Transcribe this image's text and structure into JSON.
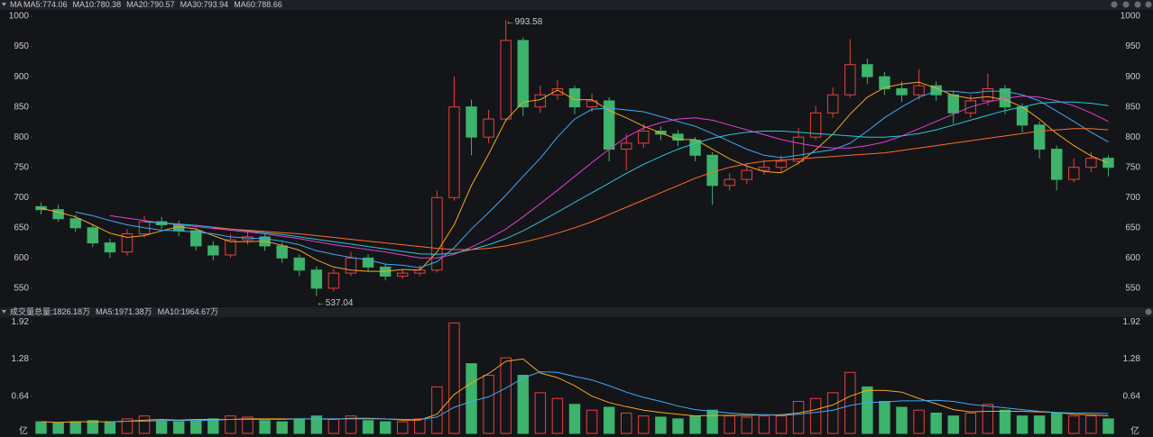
{
  "chart_data": [
    {
      "type": "candlestick",
      "indicator": "MA",
      "up_color": "#e8413c",
      "down_color": "#3db36b",
      "open": [
        685,
        680,
        665,
        650,
        625,
        610,
        640,
        660,
        655,
        645,
        620,
        605,
        630,
        635,
        620,
        600,
        580,
        550,
        575,
        600,
        585,
        570,
        575,
        580,
        700,
        850,
        800,
        830,
        960,
        850,
        870,
        880,
        850,
        860,
        780,
        790,
        810,
        805,
        795,
        770,
        720,
        730,
        745,
        750,
        760,
        800,
        840,
        870,
        920,
        900,
        880,
        870,
        885,
        870,
        840,
        860,
        880,
        850,
        820,
        780,
        730,
        750,
        765
      ],
      "high": [
        692,
        688,
        672,
        656,
        632,
        648,
        670,
        668,
        662,
        650,
        628,
        640,
        645,
        640,
        626,
        606,
        586,
        582,
        610,
        606,
        590,
        580,
        588,
        712,
        900,
        862,
        845,
        993.58,
        965,
        885,
        895,
        885,
        872,
        866,
        805,
        822,
        818,
        812,
        800,
        775,
        740,
        755,
        762,
        770,
        815,
        852,
        882,
        962,
        930,
        908,
        892,
        912,
        892,
        876,
        870,
        905,
        886,
        856,
        826,
        786,
        765,
        775,
        770
      ],
      "low": [
        672,
        660,
        643,
        618,
        600,
        604,
        634,
        648,
        636,
        612,
        596,
        600,
        622,
        612,
        592,
        570,
        537.04,
        545,
        570,
        578,
        563,
        565,
        570,
        576,
        695,
        770,
        790,
        825,
        835,
        840,
        862,
        838,
        842,
        760,
        745,
        782,
        795,
        785,
        760,
        688,
        712,
        722,
        738,
        742,
        755,
        795,
        832,
        865,
        888,
        870,
        858,
        862,
        860,
        822,
        832,
        852,
        838,
        808,
        765,
        712,
        725,
        742,
        735
      ],
      "close": [
        680,
        665,
        650,
        625,
        610,
        640,
        660,
        655,
        645,
        620,
        605,
        630,
        635,
        620,
        600,
        580,
        550,
        575,
        600,
        585,
        570,
        575,
        580,
        700,
        850,
        800,
        830,
        960,
        850,
        870,
        880,
        850,
        860,
        780,
        790,
        810,
        805,
        795,
        770,
        720,
        730,
        745,
        750,
        760,
        800,
        840,
        870,
        920,
        900,
        880,
        870,
        885,
        870,
        840,
        860,
        880,
        850,
        820,
        780,
        730,
        750,
        765,
        750
      ],
      "series": [
        {
          "name": "MA5:774.06",
          "color": "#f5a623",
          "values": [
            682,
            676,
            668,
            655,
            641,
            634,
            637,
            645,
            652,
            648,
            637,
            627,
            627,
            628,
            621,
            613,
            597,
            585,
            580,
            578,
            578,
            581,
            580,
            610,
            655,
            720,
            772,
            828,
            858,
            862,
            878,
            862,
            862,
            844,
            832,
            818,
            807,
            796,
            796,
            780,
            764,
            752,
            743,
            741,
            757,
            779,
            805,
            838,
            866,
            882,
            888,
            891,
            881,
            869,
            864,
            867,
            862,
            850,
            830,
            806,
            786,
            769,
            757
          ]
        },
        {
          "name": "MA10:780.38",
          "color": "#3fa9f5",
          "values": [
            null,
            null,
            676,
            670,
            662,
            655,
            650,
            646,
            645,
            643,
            640,
            635,
            633,
            632,
            628,
            622,
            612,
            606,
            601,
            597,
            590,
            588,
            584,
            594,
            617,
            648,
            675,
            704,
            735,
            765,
            800,
            830,
            846,
            848,
            845,
            842,
            834,
            826,
            818,
            806,
            793,
            780,
            770,
            766,
            770,
            775,
            779,
            790,
            810,
            832,
            850,
            866,
            876,
            876,
            873,
            876,
            876,
            870,
            860,
            843,
            826,
            808,
            792
          ]
        },
        {
          "name": "MA20:790.57",
          "color": "#e040d0",
          "values": [
            null,
            null,
            null,
            null,
            670,
            666,
            662,
            658,
            655,
            652,
            649,
            646,
            643,
            640,
            636,
            632,
            627,
            622,
            618,
            614,
            610,
            605,
            600,
            600,
            606,
            618,
            632,
            648,
            668,
            690,
            712,
            735,
            758,
            780,
            800,
            815,
            824,
            830,
            832,
            828,
            820,
            812,
            804,
            796,
            790,
            785,
            782,
            782,
            786,
            792,
            802,
            814,
            826,
            838,
            850,
            858,
            864,
            868,
            866,
            860,
            852,
            840,
            826
          ]
        },
        {
          "name": "MA30:793.94",
          "color": "#2ec4d6",
          "values": [
            null,
            null,
            null,
            null,
            null,
            null,
            660,
            658,
            656,
            654,
            651,
            648,
            645,
            642,
            639,
            635,
            631,
            627,
            623,
            619,
            615,
            611,
            607,
            606,
            608,
            614,
            622,
            632,
            645,
            660,
            676,
            692,
            708,
            724,
            740,
            755,
            768,
            780,
            790,
            798,
            804,
            808,
            810,
            810,
            808,
            806,
            804,
            802,
            800,
            800,
            802,
            806,
            812,
            820,
            828,
            836,
            844,
            850,
            856,
            858,
            858,
            856,
            852
          ]
        },
        {
          "name": "MA60:788.66",
          "color": "#ff6b2b",
          "values": [
            null,
            null,
            null,
            null,
            null,
            null,
            null,
            null,
            null,
            null,
            650,
            648,
            646,
            644,
            642,
            640,
            637,
            634,
            631,
            628,
            625,
            622,
            619,
            616,
            614,
            614,
            616,
            620,
            626,
            633,
            641,
            650,
            660,
            672,
            684,
            696,
            708,
            720,
            732,
            742,
            750,
            756,
            760,
            762,
            764,
            766,
            768,
            770,
            772,
            774,
            778,
            782,
            786,
            790,
            794,
            798,
            802,
            806,
            810,
            812,
            814,
            814,
            812
          ]
        }
      ],
      "annotations": [
        "←993.58",
        "←537.04"
      ],
      "ylim": [
        523,
        1009
      ],
      "yticks": [
        550,
        600,
        650,
        700,
        750,
        800,
        850,
        900,
        950,
        1000
      ]
    },
    {
      "type": "volume",
      "title": "成交量",
      "total_label": "总量:1826.18万",
      "total_color": "#e8413c",
      "unit": "亿",
      "values": [
        0.2,
        0.18,
        0.2,
        0.22,
        0.2,
        0.25,
        0.3,
        0.22,
        0.2,
        0.22,
        0.25,
        0.3,
        0.28,
        0.22,
        0.2,
        0.25,
        0.3,
        0.25,
        0.3,
        0.22,
        0.2,
        0.2,
        0.25,
        0.8,
        1.9,
        1.2,
        1.0,
        1.3,
        1.0,
        0.7,
        0.6,
        0.5,
        0.4,
        0.45,
        0.35,
        0.3,
        0.28,
        0.25,
        0.3,
        0.4,
        0.3,
        0.28,
        0.3,
        0.3,
        0.55,
        0.6,
        0.7,
        1.05,
        0.8,
        0.55,
        0.45,
        0.4,
        0.35,
        0.3,
        0.35,
        0.5,
        0.4,
        0.3,
        0.3,
        0.35,
        0.3,
        0.3,
        0.25
      ],
      "series": [
        {
          "name": "MA5:1971.38万",
          "color": "#f5a623",
          "values": [
            0.2,
            0.19,
            0.2,
            0.2,
            0.2,
            0.21,
            0.23,
            0.24,
            0.23,
            0.24,
            0.24,
            0.24,
            0.25,
            0.25,
            0.25,
            0.25,
            0.25,
            0.24,
            0.26,
            0.26,
            0.25,
            0.23,
            0.23,
            0.33,
            0.67,
            0.87,
            1.03,
            1.24,
            1.28,
            1.04,
            0.96,
            0.82,
            0.64,
            0.53,
            0.46,
            0.4,
            0.36,
            0.33,
            0.3,
            0.31,
            0.31,
            0.31,
            0.32,
            0.32,
            0.35,
            0.41,
            0.49,
            0.64,
            0.74,
            0.74,
            0.71,
            0.6,
            0.51,
            0.41,
            0.37,
            0.38,
            0.38,
            0.38,
            0.37,
            0.36,
            0.33,
            0.32,
            0.3
          ]
        },
        {
          "name": "MA10:1964.67万",
          "color": "#3fa9f5",
          "values": [
            null,
            null,
            null,
            null,
            0.2,
            0.21,
            0.21,
            0.22,
            0.22,
            0.22,
            0.23,
            0.24,
            0.24,
            0.24,
            0.24,
            0.25,
            0.25,
            0.25,
            0.25,
            0.25,
            0.25,
            0.24,
            0.24,
            0.28,
            0.45,
            0.55,
            0.63,
            0.78,
            0.95,
            1.06,
            1.05,
            0.98,
            0.92,
            0.82,
            0.71,
            0.62,
            0.55,
            0.47,
            0.41,
            0.38,
            0.35,
            0.33,
            0.32,
            0.31,
            0.33,
            0.36,
            0.4,
            0.48,
            0.53,
            0.54,
            0.56,
            0.56,
            0.57,
            0.55,
            0.5,
            0.47,
            0.44,
            0.41,
            0.38,
            0.36,
            0.35,
            0.35,
            0.34
          ]
        }
      ],
      "ylim": [
        0,
        2.0
      ],
      "yticks": [
        0.64,
        1.28,
        1.92
      ]
    }
  ]
}
